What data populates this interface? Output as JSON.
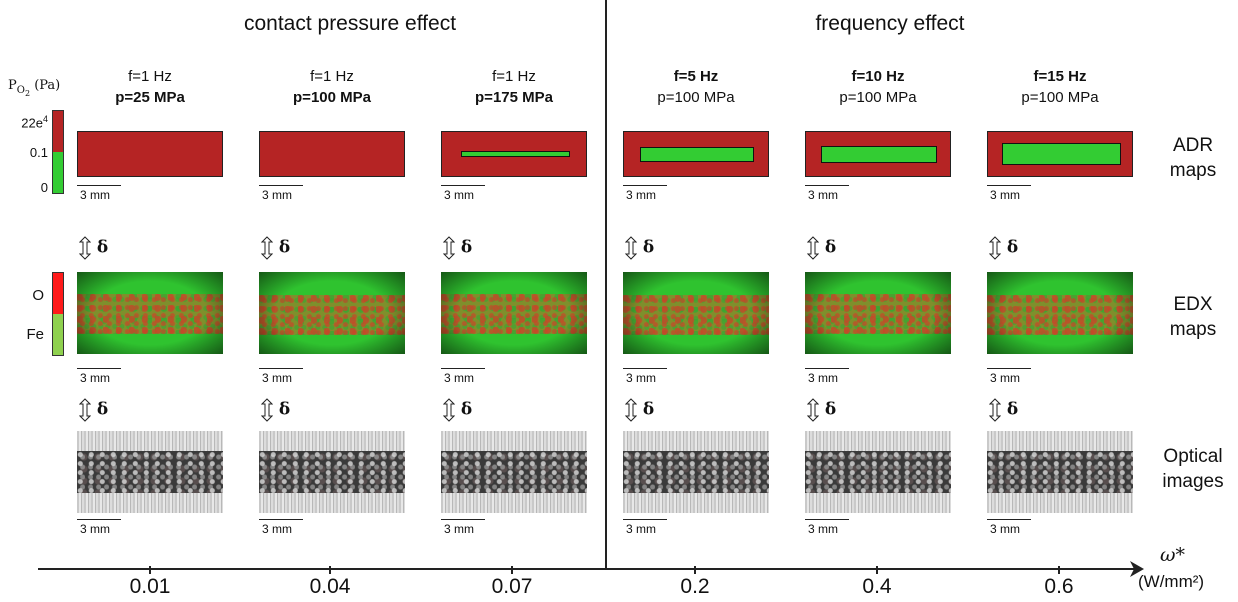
{
  "sections": {
    "left_title": "contact pressure effect",
    "right_title": "frequency effect"
  },
  "legend_adr": {
    "symbol": "P",
    "subscript": "O",
    "subsub": "2",
    "unit": "(Pa)",
    "max": "22e",
    "max_exp": "4",
    "mid": "0.1",
    "min": "0",
    "colors": {
      "high": "#b52424",
      "low": "#33cc33"
    }
  },
  "legend_edx": {
    "o": "O",
    "fe": "Fe",
    "colors": {
      "o": "#ff1a1a",
      "fe": "#8fd14f"
    }
  },
  "row_labels": {
    "adr": [
      "ADR",
      "maps"
    ],
    "edx": [
      "EDX",
      "maps"
    ],
    "optical": [
      "Optical",
      "images"
    ]
  },
  "delta_symbol": "δ",
  "scale_label": "3 mm",
  "conditions": [
    {
      "f": "f=1 Hz",
      "p": "p=25 MPa",
      "bold": "p",
      "green_zone_fraction": 0.0
    },
    {
      "f": "f=1 Hz",
      "p": "p=100 MPa",
      "bold": "p",
      "green_zone_fraction": 0.0
    },
    {
      "f": "f=1 Hz",
      "p": "p=175 MPa",
      "bold": "p",
      "green_zone_fraction": 0.1
    },
    {
      "f": "f=5 Hz",
      "p": "p=100 MPa",
      "bold": "f",
      "green_zone_fraction": 0.3
    },
    {
      "f": "f=10 Hz",
      "p": "p=100 MPa",
      "bold": "f",
      "green_zone_fraction": 0.35
    },
    {
      "f": "f=15 Hz",
      "p": "p=100 MPa",
      "bold": "f",
      "green_zone_fraction": 0.45
    }
  ],
  "axis": {
    "label": "ω*",
    "unit": "(W/mm²)",
    "ticks": [
      "0.01",
      "0.04",
      "0.07",
      "0.2",
      "0.4",
      "0.6"
    ]
  }
}
